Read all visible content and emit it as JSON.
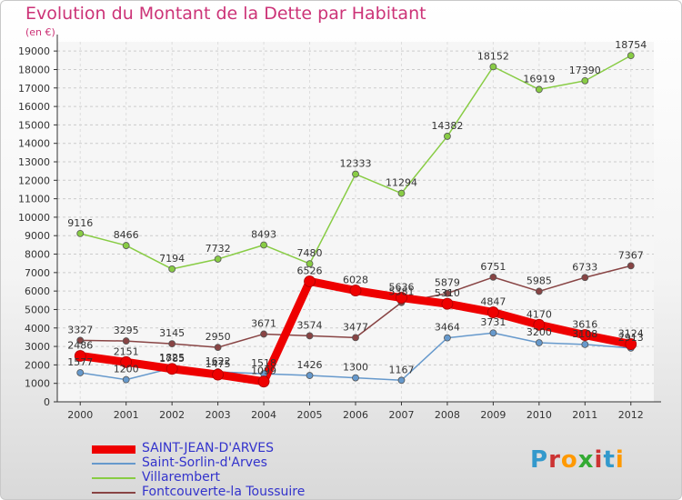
{
  "title": "Evolution du Montant de la Dette par Habitant",
  "unit": "(en €)",
  "logo": "Proxiti",
  "chart_data": {
    "type": "line",
    "x": [
      "2000",
      "2001",
      "2002",
      "2003",
      "2004",
      "2005",
      "2006",
      "2007",
      "2008",
      "2009",
      "2010",
      "2011",
      "2012"
    ],
    "ylim": [
      0,
      19500
    ],
    "yticks": [
      0,
      1000,
      2000,
      3000,
      4000,
      5000,
      6000,
      7000,
      8000,
      9000,
      10000,
      11000,
      12000,
      13000,
      14000,
      15000,
      16000,
      17000,
      18000,
      19000
    ],
    "grid": true,
    "legend_position": "bottom",
    "series": [
      {
        "name": "SAINT-JEAN-D'ARVES",
        "color": "#ee0000",
        "width": 9,
        "values": [
          2486,
          2151,
          1785,
          1475,
          1099,
          6526,
          6028,
          5636,
          5310,
          4847,
          4170,
          3616,
          3124
        ],
        "labels": [
          "2486",
          "2151",
          "1785",
          "1475",
          "1099",
          "6526",
          "6028",
          "5636",
          "5310",
          "4847",
          "4170",
          "3616",
          "3124"
        ]
      },
      {
        "name": "Saint-Sorlin-d'Arves",
        "color": "#6699cc",
        "width": 1.5,
        "values": [
          1577,
          1200,
          1825,
          1622,
          1518,
          1426,
          1300,
          1167,
          3464,
          3731,
          3200,
          3108,
          2913
        ],
        "labels": [
          "1577",
          "1200",
          "1825",
          "1622",
          "1518",
          "1426",
          "1300",
          "1167",
          "3464",
          "3731",
          "3200",
          "3108",
          "2913"
        ]
      },
      {
        "name": "Villarembert",
        "color": "#88cc44",
        "width": 1.5,
        "values": [
          9116,
          8466,
          7194,
          7732,
          8493,
          7480,
          12333,
          11294,
          14382,
          18152,
          16919,
          17390,
          18754
        ],
        "labels": [
          "9116",
          "8466",
          "7194",
          "7732",
          "8493",
          "7480",
          "12333",
          "11294",
          "14382",
          "18152",
          "16919",
          "17390",
          "18754"
        ]
      },
      {
        "name": "Fontcouverte-la Toussuire",
        "color": "#884444",
        "width": 1.5,
        "values": [
          3327,
          3295,
          3145,
          2950,
          3671,
          3574,
          3477,
          5381,
          5879,
          6751,
          5985,
          6733,
          7367
        ],
        "labels": [
          "3327",
          "3295",
          "3145",
          "2950",
          "3671",
          "3574",
          "3477",
          "5381",
          "5879",
          "6751",
          "5985",
          "6733",
          "7367"
        ]
      }
    ]
  }
}
